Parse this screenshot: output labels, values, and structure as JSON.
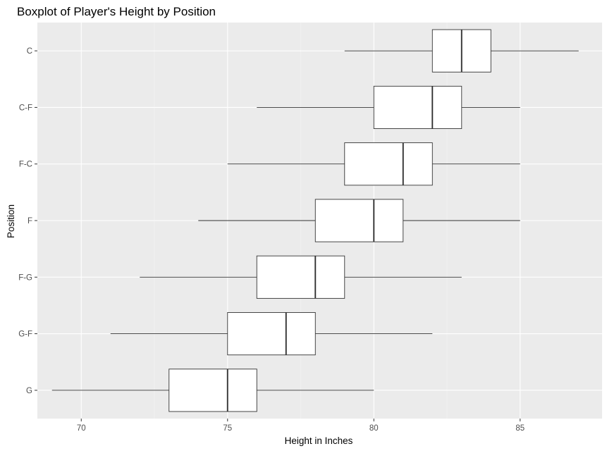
{
  "chart_data": {
    "type": "boxplot",
    "orientation": "horizontal",
    "title": "Boxplot of Player's Height by Position",
    "xlabel": "Height in Inches",
    "ylabel": "Position",
    "xlim": [
      68.5,
      87.8
    ],
    "x_ticks": [
      70,
      75,
      80,
      85
    ],
    "x_tick_labels": [
      "70",
      "75",
      "80",
      "85"
    ],
    "grid": true,
    "legend": "none",
    "categories": [
      "C",
      "C-F",
      "F-C",
      "F",
      "F-G",
      "G-F",
      "G"
    ],
    "boxes": [
      {
        "category": "C",
        "min": 79,
        "q1": 82,
        "median": 83,
        "q3": 84,
        "max": 87
      },
      {
        "category": "C-F",
        "min": 76,
        "q1": 80,
        "median": 82,
        "q3": 83,
        "max": 85
      },
      {
        "category": "F-C",
        "min": 75,
        "q1": 79,
        "median": 81,
        "q3": 82,
        "max": 85
      },
      {
        "category": "F",
        "min": 74,
        "q1": 78,
        "median": 80,
        "q3": 81,
        "max": 85
      },
      {
        "category": "F-G",
        "min": 72,
        "q1": 76,
        "median": 78,
        "q3": 79,
        "max": 83
      },
      {
        "category": "G-F",
        "min": 71,
        "q1": 75,
        "median": 77,
        "q3": 78,
        "max": 82
      },
      {
        "category": "G",
        "min": 69,
        "q1": 73,
        "median": 75,
        "q3": 76,
        "max": 80
      }
    ],
    "colors": {
      "panel_background": "#ebebeb",
      "grid_major": "#ffffff",
      "grid_minor": "#f5f5f5",
      "box_fill": "#ffffff",
      "box_stroke": "#333333",
      "tick_label": "#4d4d4d",
      "tick_mark": "#333333"
    }
  }
}
